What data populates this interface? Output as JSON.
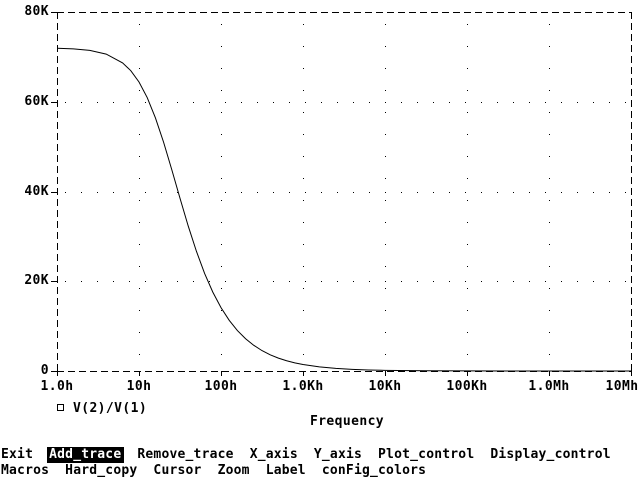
{
  "colors": {
    "background": "#ffffff",
    "foreground": "#000000",
    "highlight_bg": "#000000",
    "highlight_fg": "#ffffff"
  },
  "chart_data": {
    "type": "line",
    "title": "",
    "xlabel": "Frequency",
    "ylabel": "",
    "x_scale": "log10",
    "xlim_log10": [
      0,
      7
    ],
    "ylim": [
      0,
      80000
    ],
    "grid": "dotted",
    "frame": "dashed",
    "legend_position": "bottom-left",
    "x_ticks": [
      {
        "label": "1.0h",
        "log10": 0
      },
      {
        "label": "10h",
        "log10": 1
      },
      {
        "label": "100h",
        "log10": 2
      },
      {
        "label": "1.0Kh",
        "log10": 3
      },
      {
        "label": "10Kh",
        "log10": 4
      },
      {
        "label": "100Kh",
        "log10": 5
      },
      {
        "label": "1.0Mh",
        "log10": 6
      },
      {
        "label": "10Mh",
        "log10": 7,
        "label_dx": -9
      }
    ],
    "y_ticks": [
      {
        "label": "0",
        "value": 0
      },
      {
        "label": "20K",
        "value": 20000
      },
      {
        "label": "40K",
        "value": 40000
      },
      {
        "label": "60K",
        "value": 60000
      },
      {
        "label": "80K",
        "value": 80000
      }
    ],
    "series": [
      {
        "name": "V(2)/V(1)",
        "marker": "open-square",
        "model": {
          "kind": "single_pole_lowpass",
          "dc_value": 72000,
          "pole_hz": 20
        },
        "points_log10f_value": [
          [
            0,
            71910
          ],
          [
            0.2,
            71780
          ],
          [
            0.4,
            71440
          ],
          [
            0.6,
            70620
          ],
          [
            0.8,
            68660
          ],
          [
            0.9,
            66920
          ],
          [
            1,
            64400
          ],
          [
            1.1,
            60930
          ],
          [
            1.2,
            56420
          ],
          [
            1.3,
            50980
          ],
          [
            1.4,
            44850
          ],
          [
            1.5,
            38490
          ],
          [
            1.6,
            32320
          ],
          [
            1.7,
            26690
          ],
          [
            1.8,
            21750
          ],
          [
            1.9,
            17580
          ],
          [
            2,
            14120
          ],
          [
            2.1,
            11300
          ],
          [
            2.2,
            9010
          ],
          [
            2.3,
            7180
          ],
          [
            2.4,
            5720
          ],
          [
            2.5,
            4540
          ],
          [
            2.6,
            3610
          ],
          [
            2.7,
            2870
          ],
          [
            2.8,
            2280
          ],
          [
            2.9,
            1810
          ],
          [
            3,
            1440
          ],
          [
            3.2,
            908
          ],
          [
            3.4,
            573
          ],
          [
            3.6,
            362
          ],
          [
            3.8,
            228
          ],
          [
            4,
            144
          ],
          [
            4.5,
            46
          ],
          [
            5,
            14
          ],
          [
            6,
            1
          ],
          [
            7,
            0
          ]
        ]
      }
    ]
  },
  "menu": {
    "rows": [
      {
        "items": [
          {
            "label": "Exit",
            "highlighted": false
          },
          {
            "label": "Add_trace",
            "highlighted": true
          },
          {
            "label": "Remove_trace",
            "highlighted": false
          },
          {
            "label": "X_axis",
            "highlighted": false
          },
          {
            "label": "Y_axis",
            "highlighted": false
          },
          {
            "label": "Plot_control",
            "highlighted": false
          },
          {
            "label": "Display_control",
            "highlighted": false
          }
        ]
      },
      {
        "items": [
          {
            "label": "Macros",
            "highlighted": false
          },
          {
            "label": "Hard_copy",
            "highlighted": false
          },
          {
            "label": "Cursor",
            "highlighted": false
          },
          {
            "label": "Zoom",
            "highlighted": false
          },
          {
            "label": "Label",
            "highlighted": false
          },
          {
            "label": "conFig_colors",
            "highlighted": false
          }
        ]
      }
    ]
  }
}
